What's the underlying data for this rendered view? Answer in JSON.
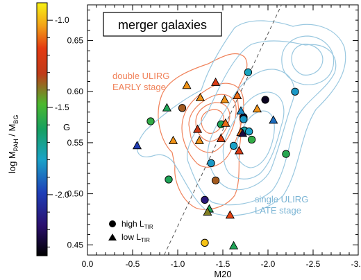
{
  "chart_data": {
    "type": "scatter",
    "title": "merger galaxies",
    "xlabel": "M20",
    "ylabel": "G",
    "xlim": [
      0.0,
      -3.0
    ],
    "ylim": [
      0.44,
      0.685
    ],
    "x_ticks": [
      0.0,
      -0.5,
      -1.0,
      -1.5,
      -2.0,
      -2.5,
      -3.0
    ],
    "x_tick_labels": [
      "0.0",
      "-0.5",
      "-1.0",
      "-1.5",
      "-2.0",
      "-2.5",
      "-3.0"
    ],
    "y_ticks": [
      0.45,
      0.5,
      0.55,
      0.6,
      0.65
    ],
    "y_tick_labels": [
      "0.45",
      "0.50",
      "0.55",
      "0.60",
      "0.65"
    ],
    "colorbar": {
      "label_main": "log  M",
      "label_sub1": "PAH",
      "label_mid": " / M",
      "label_sub2": "BG",
      "range": [
        -2.35,
        -0.9
      ],
      "ticks": [
        -1.0,
        -1.5,
        -2.0
      ],
      "tick_labels": [
        "-1.0",
        "-1.5",
        "-2.0"
      ]
    },
    "annotations": {
      "double_line1": "double ULIRG",
      "double_line2": "EARLY stage",
      "single_line1": "single ULIRG",
      "single_line2": "LATE stage"
    },
    "legend": {
      "position": "bottom-left",
      "high_label": "high L",
      "low_label": "low L",
      "sub": "TIR"
    },
    "divider_line": {
      "x": [
        -0.85,
        -2.15
      ],
      "y": [
        0.44,
        0.685
      ],
      "style": "dashed"
    },
    "colors": {
      "double_contour": "#f0825a",
      "single_contour": "#9ac8e0",
      "divider": "#555555"
    },
    "series": [
      {
        "name": "high L_TIR",
        "marker": "circle",
        "points": [
          {
            "x": -0.7,
            "y": 0.571,
            "c": -1.55
          },
          {
            "x": -0.9,
            "y": 0.514,
            "c": -1.6
          },
          {
            "x": -1.05,
            "y": 0.584,
            "c": -1.35
          },
          {
            "x": -1.3,
            "y": 0.494,
            "c": -2.15
          },
          {
            "x": -1.3,
            "y": 0.452,
            "c": -0.98
          },
          {
            "x": -1.42,
            "y": 0.513,
            "c": -1.35
          },
          {
            "x": -1.37,
            "y": 0.53,
            "c": -1.82
          },
          {
            "x": -1.48,
            "y": 0.568,
            "c": -1.6
          },
          {
            "x": -1.62,
            "y": 0.547,
            "c": -1.8
          },
          {
            "x": -1.73,
            "y": 0.575,
            "c": -2.3
          },
          {
            "x": -1.73,
            "y": 0.573,
            "c": -1.82
          },
          {
            "x": -1.74,
            "y": 0.562,
            "c": -1.75
          },
          {
            "x": -1.79,
            "y": 0.561,
            "c": -1.8
          },
          {
            "x": -1.82,
            "y": 0.553,
            "c": -1.55
          },
          {
            "x": -1.78,
            "y": 0.619,
            "c": -1.78
          },
          {
            "x": -1.97,
            "y": 0.592,
            "c": -2.3
          },
          {
            "x": -2.3,
            "y": 0.6,
            "c": -1.82
          },
          {
            "x": -2.2,
            "y": 0.539,
            "c": -1.58
          }
        ]
      },
      {
        "name": "low L_TIR",
        "marker": "triangle",
        "points": [
          {
            "x": -0.55,
            "y": 0.547,
            "c": -2.0
          },
          {
            "x": -0.88,
            "y": 0.584,
            "c": -1.6
          },
          {
            "x": -1.1,
            "y": 0.606,
            "c": -1.05
          },
          {
            "x": -0.95,
            "y": 0.552,
            "c": -1.05
          },
          {
            "x": -1.25,
            "y": 0.594,
            "c": -1.05
          },
          {
            "x": -1.22,
            "y": 0.563,
            "c": -1.25
          },
          {
            "x": -1.24,
            "y": 0.552,
            "c": -1.05
          },
          {
            "x": -1.42,
            "y": 0.609,
            "c": -1.2
          },
          {
            "x": -1.52,
            "y": 0.592,
            "c": -1.05
          },
          {
            "x": -1.53,
            "y": 0.569,
            "c": -1.1
          },
          {
            "x": -1.48,
            "y": 0.554,
            "c": -1.15
          },
          {
            "x": -1.66,
            "y": 0.596,
            "c": -1.1
          },
          {
            "x": -1.7,
            "y": 0.56,
            "c": -1.1
          },
          {
            "x": -1.68,
            "y": 0.542,
            "c": -1.2
          },
          {
            "x": -1.7,
            "y": 0.581,
            "c": -1.85
          },
          {
            "x": -1.72,
            "y": 0.559,
            "c": -2.25
          },
          {
            "x": -1.88,
            "y": 0.583,
            "c": -1.05
          },
          {
            "x": -2.06,
            "y": 0.572,
            "c": -1.9
          },
          {
            "x": -1.35,
            "y": 0.485,
            "c": -1.6
          },
          {
            "x": -1.33,
            "y": 0.482,
            "c": -1.4
          },
          {
            "x": -1.58,
            "y": 0.479,
            "c": -1.15
          },
          {
            "x": -1.62,
            "y": 0.449,
            "c": -1.6
          }
        ]
      }
    ]
  }
}
